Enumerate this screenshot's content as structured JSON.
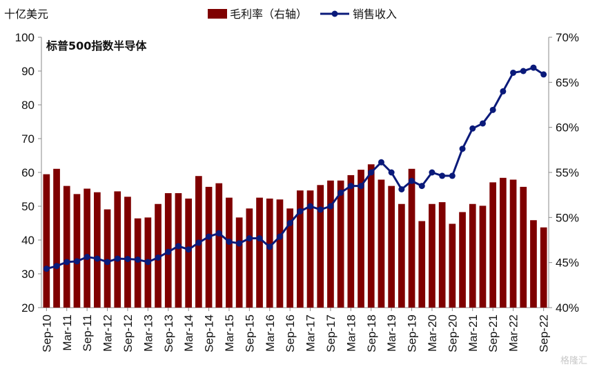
{
  "chart_data": {
    "type": "bar+line",
    "title": "标普500指数半导体",
    "left_unit": "十亿美元",
    "left_axis": {
      "min": 20,
      "max": 100,
      "ticks": [
        20,
        30,
        40,
        50,
        60,
        70,
        80,
        90,
        100
      ]
    },
    "right_axis": {
      "min": 40,
      "max": 70,
      "ticks": [
        "40%",
        "45%",
        "50%",
        "55%",
        "60%",
        "65%",
        "70%"
      ]
    },
    "x_tick_labels": [
      "Sep-10",
      "Mar-11",
      "Sep-11",
      "Mar-12",
      "Sep-12",
      "Mar-13",
      "Sep-13",
      "Mar-14",
      "Sep-14",
      "Mar-15",
      "Sep-15",
      "Mar-16",
      "Sep-16",
      "Mar-17",
      "Sep-17",
      "Mar-18",
      "Sep-18",
      "Mar-19",
      "Sep-19",
      "Mar-20",
      "Sep-20",
      "Mar-21",
      "Sep-21",
      "Mar-22",
      "Sep-22"
    ],
    "legend": {
      "bar_label": "毛利率（右轴）",
      "line_label": "销售收入",
      "placement": "top-center"
    },
    "colors": {
      "bar": "#7f0000",
      "line": "#0a1a7a",
      "axis": "#888888"
    },
    "series": [
      {
        "name": "毛利率（右轴）",
        "axis": "right",
        "unit": "%",
        "values": [
          54.8,
          55.4,
          53.5,
          52.6,
          53.2,
          52.8,
          50.9,
          52.9,
          52.3,
          49.9,
          50.0,
          51.5,
          52.7,
          52.7,
          52.1,
          54.6,
          53.4,
          53.8,
          52.2,
          50.0,
          51.0,
          52.2,
          52.1,
          52.0,
          51.0,
          53.0,
          53.0,
          53.6,
          54.1,
          54.1,
          54.7,
          55.3,
          55.9,
          54.2,
          53.5,
          51.5,
          55.4,
          49.6,
          51.5,
          51.7,
          49.3,
          50.6,
          51.5,
          51.3,
          53.9,
          54.4,
          54.2,
          53.4,
          49.7,
          48.9
        ]
      },
      {
        "name": "销售收入",
        "axis": "left",
        "unit": "十亿美元",
        "values": [
          31.5,
          32.3,
          33.5,
          33.7,
          35.0,
          34.5,
          33.5,
          34.5,
          34.4,
          34.2,
          33.5,
          34.8,
          36.5,
          38.2,
          37.2,
          39.2,
          41.0,
          42.0,
          39.5,
          39.0,
          40.5,
          40.5,
          38.0,
          41.0,
          45.0,
          48.5,
          50.0,
          49.0,
          50.0,
          54.0,
          56.0,
          56.0,
          60.0,
          63.0,
          60.0,
          55.0,
          57.5,
          56.0,
          60.0,
          59.0,
          59.0,
          67.0,
          73.0,
          74.5,
          78.5,
          84.0,
          89.5,
          90.0,
          91.0,
          89.0
        ]
      }
    ]
  },
  "watermark": "格隆汇"
}
